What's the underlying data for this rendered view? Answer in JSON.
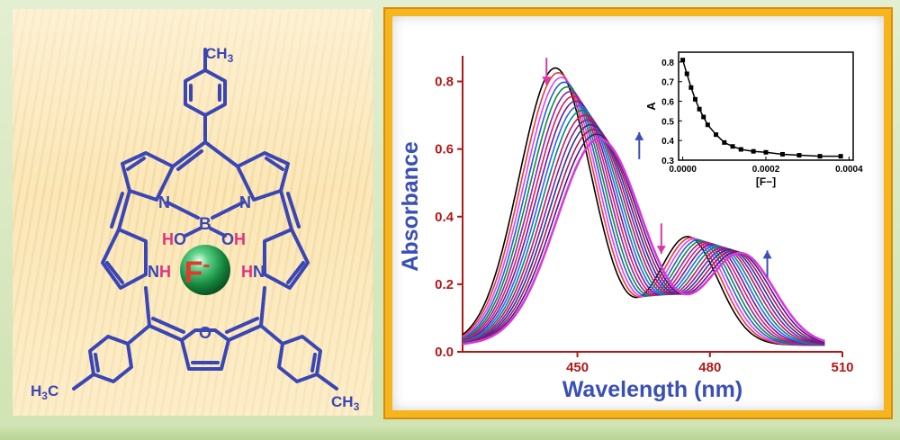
{
  "molecule": {
    "methyl_top": "CH3",
    "methyl_bottom_left": "H3C",
    "methyl_bottom_right": "CH3",
    "atoms": {
      "n_left": "N",
      "n_right": "N",
      "boron": "B",
      "ho_left": "HO",
      "oh_right": "OH",
      "nh_left": "NH",
      "hn_right": "HN",
      "furan_o": "O"
    },
    "ion_label": "F-",
    "colors": {
      "bonds": "#3b46b5",
      "hydroxyl_h": "#e2337f",
      "ion_text": "#e23a2a",
      "ion_sphere": "#1a9a4a"
    }
  },
  "chart_data": [
    {
      "type": "line",
      "xlabel": "Wavelength (nm)",
      "ylabel": "Absorbance",
      "xlim": [
        424,
        510
      ],
      "ylim": [
        0,
        0.86
      ],
      "xticks": [
        450,
        480,
        510
      ],
      "yticks": [
        0.0,
        0.2,
        0.4,
        0.6,
        0.8
      ],
      "xtick_labels": [
        "450",
        "480",
        "510"
      ],
      "ytick_labels": [
        "0.0",
        "0.2",
        "0.4",
        "0.6",
        "0.8"
      ],
      "num_spectra": 16,
      "series_colors": [
        "#000000",
        "#e53935",
        "#e040fb",
        "#1e63c8",
        "#0e8a3a",
        "#8e24aa",
        "#d81b60",
        "#6a1b9a",
        "#2962ff",
        "#00897b",
        "#c2185b",
        "#7b1fa2",
        "#283593",
        "#ad1457",
        "#4a148c",
        "#d63ad6"
      ],
      "spectra_model": {
        "initial": {
          "band1_peak": 445,
          "band1_height": 0.82,
          "band2_peak": 475,
          "band2_height": 0.32,
          "minimum_near": 462
        },
        "final": {
          "band1_peak": 455,
          "band1_height": 0.61,
          "band2_peak": 487,
          "band2_height": 0.27,
          "minimum_near": 468
        },
        "isosbestic_points": [
          {
            "x": 451,
            "y": 0.55
          },
          {
            "x": 468,
            "y": 0.16
          },
          {
            "x": 480,
            "y": 0.22
          }
        ]
      },
      "arrows": [
        {
          "x": 443,
          "y_top": 0.87,
          "y_bottom": 0.79,
          "direction": "down",
          "color": "#d63aa8"
        },
        {
          "x": 464,
          "y_top": 0.65,
          "y_bottom": 0.57,
          "direction": "up",
          "color": "#3a50b5"
        },
        {
          "x": 469,
          "y_top": 0.38,
          "y_bottom": 0.29,
          "direction": "down",
          "color": "#d63aa8"
        },
        {
          "x": 493,
          "y_top": 0.3,
          "y_bottom": 0.22,
          "direction": "up",
          "color": "#3a50b5"
        }
      ],
      "axis_color": "#b01818",
      "label_color": "#3a50b5"
    },
    {
      "type": "line",
      "xlabel": "[F−]",
      "ylabel": "A",
      "xlim": [
        -1e-05,
        0.00041
      ],
      "ylim": [
        0.3,
        0.85
      ],
      "xticks": [
        0.0,
        0.0002,
        0.0004
      ],
      "xtick_labels": [
        "0.0000",
        "0.0002",
        "0.0004"
      ],
      "yticks": [
        0.3,
        0.4,
        0.5,
        0.6,
        0.7,
        0.8
      ],
      "ytick_labels": [
        "0.3",
        "0.4",
        "0.5",
        "0.6",
        "0.7",
        "0.8"
      ],
      "x": [
        0.0,
        1e-05,
        2e-05,
        3e-05,
        4e-05,
        5e-05,
        6e-05,
        8e-05,
        0.0001,
        0.00012,
        0.00014,
        0.00017,
        0.0002,
        0.00024,
        0.00028,
        0.00033,
        0.00038
      ],
      "y": [
        0.81,
        0.74,
        0.67,
        0.61,
        0.56,
        0.52,
        0.48,
        0.43,
        0.39,
        0.37,
        0.355,
        0.345,
        0.34,
        0.33,
        0.325,
        0.32,
        0.32
      ]
    }
  ]
}
